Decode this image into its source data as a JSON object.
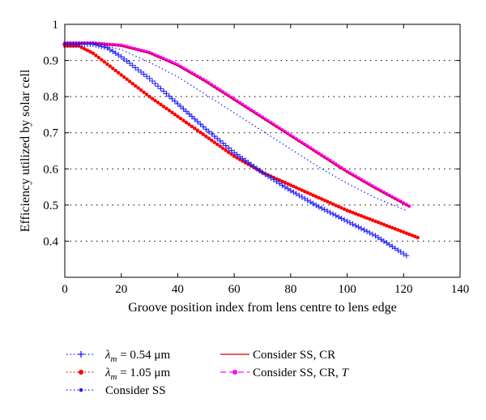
{
  "chart_data": {
    "type": "line",
    "title": "",
    "xlabel": "Groove position index from lens centre to lens edge",
    "ylabel": "Efficiency utilized by solar cell",
    "xlim": [
      0,
      140
    ],
    "ylim": [
      0.3,
      1.0
    ],
    "xticks": [
      "0",
      "20",
      "40",
      "60",
      "80",
      "100",
      "120",
      "140"
    ],
    "yticks": [
      "0.4",
      "0.5",
      "0.6",
      "0.7",
      "0.8",
      "0.9",
      "1"
    ],
    "grid": "horizontal-dotted",
    "legend_placement": "below",
    "series": [
      {
        "name": "λm = 0.54 μm",
        "legend_symbol": "λ",
        "legend_sub": "m",
        "legend_rest": " = 0.54 μm",
        "color": "#1a1aff",
        "line": "dotted",
        "marker": "plus",
        "x": [
          0,
          10,
          15,
          20,
          30,
          40,
          50,
          60,
          70,
          80,
          90,
          100,
          110,
          121
        ],
        "y": [
          0.945,
          0.945,
          0.935,
          0.91,
          0.85,
          0.78,
          0.71,
          0.645,
          0.59,
          0.54,
          0.495,
          0.455,
          0.415,
          0.36
        ]
      },
      {
        "name": "λm = 1.05 μm",
        "legend_symbol": "λ",
        "legend_sub": "m",
        "legend_rest": " = 1.05 μm",
        "color": "#ff0000",
        "line": "dotted",
        "marker": "dot",
        "x": [
          0,
          5,
          10,
          20,
          30,
          40,
          50,
          60,
          70,
          80,
          90,
          100,
          110,
          125
        ],
        "y": [
          0.94,
          0.94,
          0.92,
          0.86,
          0.8,
          0.745,
          0.69,
          0.635,
          0.59,
          0.555,
          0.52,
          0.485,
          0.455,
          0.41
        ]
      },
      {
        "name": "Consider SS",
        "color": "#1a1aff",
        "line": "dotted",
        "marker": "dot-small",
        "x": [
          0,
          10,
          20,
          30,
          40,
          50,
          60,
          70,
          80,
          90,
          100,
          110,
          121
        ],
        "y": [
          0.948,
          0.948,
          0.93,
          0.895,
          0.855,
          0.805,
          0.755,
          0.705,
          0.655,
          0.605,
          0.56,
          0.52,
          0.485
        ]
      },
      {
        "name": "Consider SS, CR",
        "color": "#cc0000",
        "line": "solid",
        "marker": "none",
        "x": [
          0,
          10,
          20,
          30,
          40,
          50,
          60,
          70,
          80,
          90,
          100,
          110,
          122
        ],
        "y": [
          0.948,
          0.948,
          0.94,
          0.92,
          0.885,
          0.84,
          0.79,
          0.74,
          0.69,
          0.64,
          0.59,
          0.545,
          0.495
        ]
      },
      {
        "name": "Consider SS, CR, T",
        "legend_prefix": "Consider SS, CR, ",
        "legend_italic": "T",
        "color": "#ff00ff",
        "line": "dashed",
        "marker": "dot",
        "x": [
          0,
          10,
          20,
          30,
          40,
          50,
          60,
          70,
          80,
          90,
          100,
          110,
          122
        ],
        "y": [
          0.948,
          0.948,
          0.942,
          0.922,
          0.888,
          0.843,
          0.793,
          0.743,
          0.693,
          0.643,
          0.593,
          0.548,
          0.497
        ]
      }
    ]
  }
}
